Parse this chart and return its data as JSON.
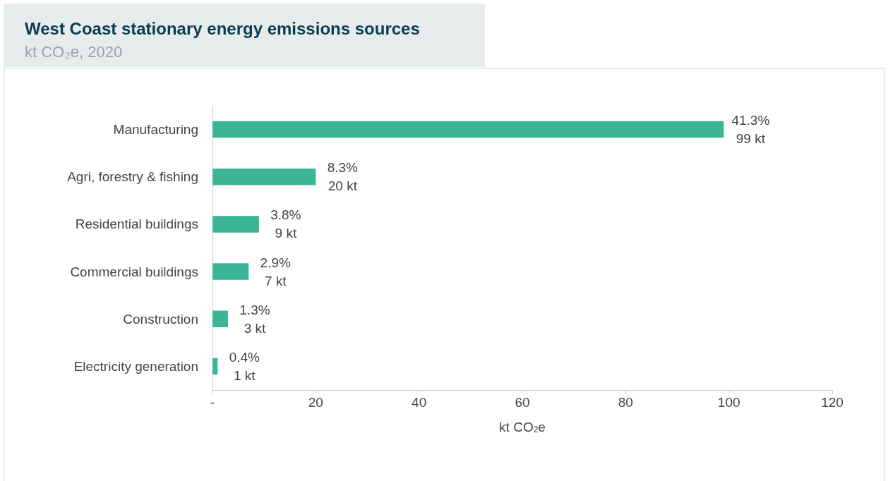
{
  "chart_data": {
    "type": "bar",
    "orientation": "horizontal",
    "title": "West Coast stationary energy emissions sources",
    "subtitle": "kt CO₂e, 2020",
    "xlabel": "kt CO$_{2}$e",
    "categories": [
      "Manufacturing",
      "Agri, forestry & fishing",
      "Residential buildings",
      "Commercial buildings",
      "Construction",
      "Electricity generation"
    ],
    "values": [
      99,
      20,
      9,
      7,
      3,
      1
    ],
    "color": "#3bb595",
    "value_labels": [
      "41.3%\n99 kt",
      "8.3%\n20 kt",
      "3.8%\n9 kt",
      "2.9%\n7 kt",
      "1.3%\n3 kt",
      "0.4%\n1 kt"
    ],
    "xlim": [
      0,
      120
    ],
    "xticks": [
      {
        "value": 0,
        "label": "-"
      },
      20,
      40,
      60,
      80,
      100,
      120
    ],
    "grid": false
  }
}
